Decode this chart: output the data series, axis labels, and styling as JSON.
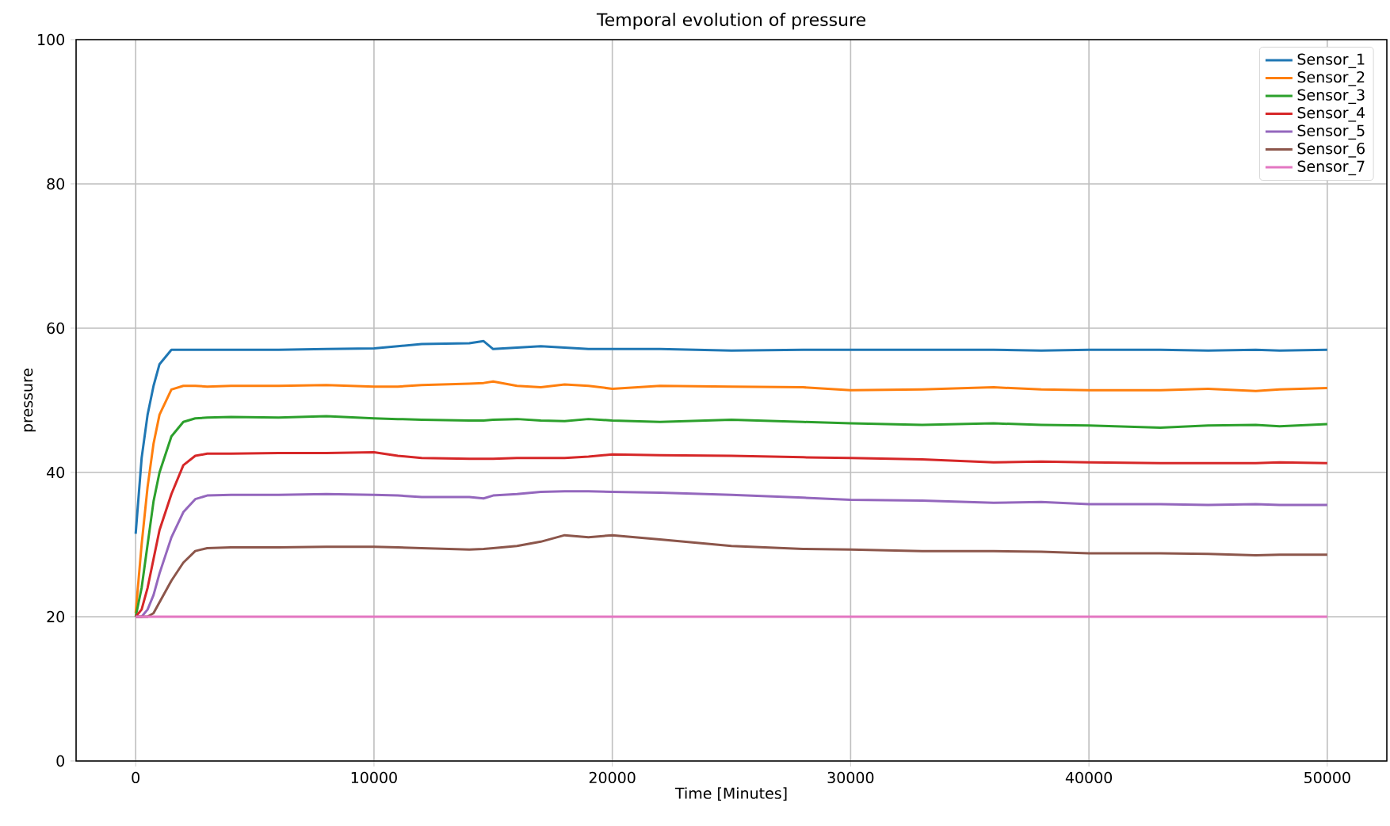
{
  "chart_data": {
    "type": "line",
    "title": "Temporal evolution of pressure",
    "xlabel": "Time [Minutes]",
    "ylabel": "pressure",
    "x": [
      0,
      250,
      500,
      750,
      1000,
      1500,
      2000,
      2500,
      3000,
      4000,
      6000,
      8000,
      10000,
      11000,
      12000,
      14000,
      14600,
      15000,
      16000,
      17000,
      18000,
      19000,
      20000,
      22000,
      25000,
      28000,
      30000,
      33000,
      36000,
      38000,
      40000,
      43000,
      45000,
      47000,
      48000,
      50000
    ],
    "series": [
      {
        "name": "Sensor_1",
        "color": "#1f77b4",
        "values": [
          31.5,
          42,
          48,
          52,
          55,
          57,
          57,
          57,
          57,
          57,
          57,
          57.1,
          57.2,
          57.5,
          57.8,
          57.9,
          58.2,
          57.1,
          57.3,
          57.5,
          57.3,
          57.1,
          57.1,
          57.1,
          56.9,
          57.0,
          57.0,
          57.0,
          57.0,
          56.9,
          57.0,
          57.0,
          56.9,
          57.0,
          56.9,
          57.0
        ]
      },
      {
        "name": "Sensor_2",
        "color": "#ff7f0e",
        "values": [
          20.5,
          30,
          38,
          44,
          48,
          51.5,
          52,
          52,
          51.9,
          52,
          52,
          52.1,
          51.9,
          51.9,
          52.1,
          52.3,
          52.4,
          52.6,
          52.0,
          51.8,
          52.2,
          52.0,
          51.6,
          52.0,
          51.9,
          51.8,
          51.4,
          51.5,
          51.8,
          51.5,
          51.4,
          51.4,
          51.6,
          51.3,
          51.5,
          51.7
        ]
      },
      {
        "name": "Sensor_3",
        "color": "#2ca02c",
        "values": [
          20,
          24,
          30,
          36,
          40,
          45,
          47,
          47.5,
          47.6,
          47.7,
          47.6,
          47.8,
          47.5,
          47.4,
          47.3,
          47.2,
          47.2,
          47.3,
          47.4,
          47.2,
          47.1,
          47.4,
          47.2,
          47.0,
          47.3,
          47.0,
          46.8,
          46.6,
          46.8,
          46.6,
          46.5,
          46.2,
          46.5,
          46.6,
          46.4,
          46.7
        ]
      },
      {
        "name": "Sensor_4",
        "color": "#d62728",
        "values": [
          20,
          21,
          24,
          28,
          32,
          37,
          41,
          42.3,
          42.6,
          42.6,
          42.7,
          42.7,
          42.8,
          42.3,
          42.0,
          41.9,
          41.9,
          41.9,
          42.0,
          42.0,
          42.0,
          42.2,
          42.5,
          42.4,
          42.3,
          42.1,
          42.0,
          41.8,
          41.4,
          41.5,
          41.4,
          41.3,
          41.3,
          41.3,
          41.4,
          41.3
        ]
      },
      {
        "name": "Sensor_5",
        "color": "#9467bd",
        "values": [
          20,
          20,
          21,
          23,
          26,
          31,
          34.5,
          36.3,
          36.8,
          36.9,
          36.9,
          37.0,
          36.9,
          36.8,
          36.6,
          36.6,
          36.4,
          36.8,
          37.0,
          37.3,
          37.4,
          37.4,
          37.3,
          37.2,
          36.9,
          36.5,
          36.2,
          36.1,
          35.8,
          35.9,
          35.6,
          35.6,
          35.5,
          35.6,
          35.5,
          35.5
        ]
      },
      {
        "name": "Sensor_6",
        "color": "#8c564b",
        "values": [
          20,
          20,
          20,
          20.5,
          22,
          25,
          27.5,
          29.1,
          29.5,
          29.6,
          29.6,
          29.7,
          29.7,
          29.6,
          29.5,
          29.3,
          29.4,
          29.5,
          29.8,
          30.4,
          31.3,
          31.0,
          31.3,
          30.7,
          29.8,
          29.4,
          29.3,
          29.1,
          29.1,
          29.0,
          28.8,
          28.8,
          28.7,
          28.5,
          28.6,
          28.6
        ]
      },
      {
        "name": "Sensor_7",
        "color": "#e377c2",
        "x": [
          0,
          50000
        ],
        "values": [
          20,
          20
        ]
      }
    ],
    "xlim": [
      -2500,
      52500
    ],
    "ylim": [
      0,
      100
    ],
    "xticks": [
      0,
      10000,
      20000,
      30000,
      40000,
      50000
    ],
    "yticks": [
      0,
      20,
      40,
      60,
      80,
      100
    ],
    "grid": true,
    "legend": "top right"
  }
}
